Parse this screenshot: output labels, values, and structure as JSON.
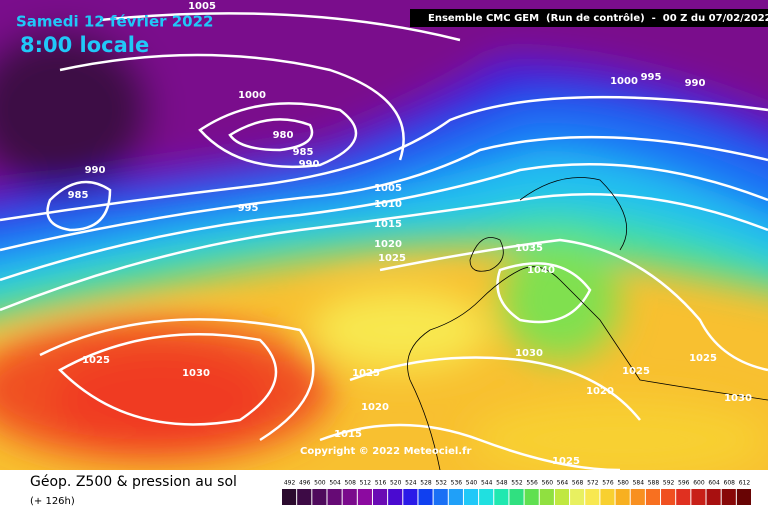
{
  "header": {
    "date": "Samedi 12 février 2022",
    "time": "8:00 locale",
    "model": "Ensemble CMC GEM  (Run de contrôle)  -  00 Z du 07/02/2022"
  },
  "footer": {
    "title": "Géop. Z500 & pression au sol",
    "lead": "(+ 126h)",
    "copyright": "Copyright © 2022 Meteociel.fr"
  },
  "isobar_labels": [
    "1005",
    "1000",
    "980",
    "985",
    "990",
    "990",
    "985",
    "995",
    "1005",
    "1010",
    "1015",
    "1020",
    "1025",
    "1035",
    "1040",
    "1030",
    "1025",
    "1030",
    "1025",
    "1020",
    "1015",
    "1020",
    "1025",
    "1025",
    "1030",
    "1025",
    "1000",
    "995",
    "990"
  ],
  "legend": {
    "values": [
      492,
      496,
      500,
      504,
      508,
      512,
      516,
      520,
      524,
      528,
      532,
      536,
      540,
      544,
      548,
      552,
      556,
      560,
      564,
      568,
      572,
      576,
      580,
      584,
      588,
      592,
      596,
      600,
      604,
      608,
      612
    ],
    "colors": [
      "#2b0a2e",
      "#3d0a45",
      "#4f0a5c",
      "#660a75",
      "#7a0a8c",
      "#8c0aa0",
      "#6a0ab4",
      "#4a0ad0",
      "#2a1ae8",
      "#1040f0",
      "#1a70f5",
      "#20a0f8",
      "#20c8f8",
      "#20e0e0",
      "#20e8b0",
      "#30e080",
      "#60e050",
      "#90e040",
      "#c0e840",
      "#e8f060",
      "#f8e850",
      "#f8d030",
      "#f8b020",
      "#f89020",
      "#f87020",
      "#f05020",
      "#e03020",
      "#c82018",
      "#a81010",
      "#880808",
      "#680404"
    ]
  }
}
